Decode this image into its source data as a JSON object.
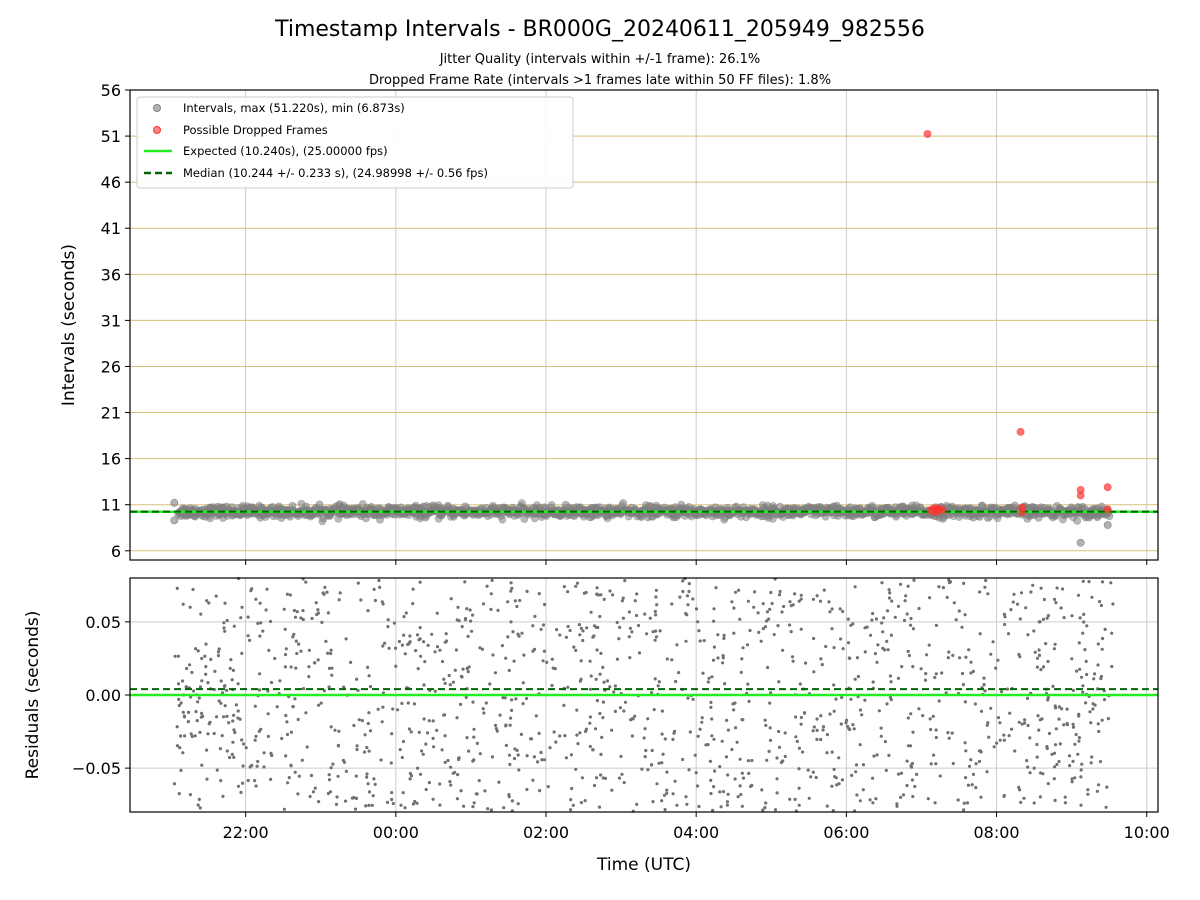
{
  "chart_data": [
    {
      "type": "scatter",
      "title": "Timestamp Intervals - BR000G_20240611_205949_982556",
      "subtitles": [
        "Jitter Quality (intervals within +/-1 frame): 26.1%",
        "Dropped Frame Rate (intervals >1 frames late within 50 FF files): 1.8%"
      ],
      "xlabel": "",
      "ylabel": "Intervals (seconds)",
      "ylim": [
        5,
        56
      ],
      "yticks": [
        6,
        11,
        16,
        21,
        26,
        31,
        36,
        41,
        46,
        51,
        56
      ],
      "ytick_labels": [
        "6",
        "11",
        "16",
        "21",
        "26",
        "31",
        "36",
        "41",
        "46",
        "51",
        "56"
      ],
      "xlim_hours": [
        20.46,
        34.15
      ],
      "xticks_hours": [
        22,
        24,
        26,
        28,
        30,
        32,
        34
      ],
      "grid": true,
      "legend_position": "top-left",
      "legend": [
        "Intervals, max (51.220s), min (6.873s)",
        "Possible Dropped Frames",
        "Expected (10.240s), (25.00000 fps)",
        "Median (10.244 +/- 0.233 s), (24.98998 +/- 0.56 fps)"
      ],
      "expected_interval": 10.24,
      "median_interval": 10.244,
      "intervals_range": {
        "x_start_hours": 21.1,
        "x_end_hours": 33.5,
        "center": 10.24,
        "spread": 0.3
      },
      "interval_outliers": [
        {
          "x": 21.05,
          "y": 11.2
        },
        {
          "x": 21.05,
          "y": 9.3
        },
        {
          "x": 33.12,
          "y": 6.87
        },
        {
          "x": 33.48,
          "y": 8.8
        }
      ],
      "dropped_frames": [
        {
          "x": 31.08,
          "y": 51.22
        },
        {
          "x": 32.32,
          "y": 18.9
        },
        {
          "x": 33.12,
          "y": 12.6
        },
        {
          "x": 33.12,
          "y": 12.0
        },
        {
          "x": 33.48,
          "y": 12.9
        },
        {
          "x": 33.48,
          "y": 10.5
        },
        {
          "x": 32.34,
          "y": 10.7
        },
        {
          "x": 32.34,
          "y": 10.2
        },
        {
          "x": 31.12,
          "y": 10.4
        },
        {
          "x": 31.16,
          "y": 10.6
        },
        {
          "x": 31.2,
          "y": 10.3
        },
        {
          "x": 31.24,
          "y": 10.5
        },
        {
          "x": 31.28,
          "y": 10.4
        },
        {
          "x": 31.18,
          "y": 10.2
        },
        {
          "x": 31.22,
          "y": 10.6
        }
      ],
      "series_colors": {
        "intervals": "#808080",
        "dropped": "#ff3333",
        "expected": "#22ee22",
        "median": "#006400",
        "grid_major_y": "#d8c07a",
        "grid": "#cccccc"
      }
    },
    {
      "type": "scatter",
      "xlabel": "Time (UTC)",
      "ylabel": "Residuals (seconds)",
      "ylim": [
        -0.08,
        0.08
      ],
      "yticks": [
        -0.05,
        0.0,
        0.05
      ],
      "ytick_labels": [
        "−0.05",
        "0.00",
        "0.05"
      ],
      "xlim_hours": [
        20.46,
        34.15
      ],
      "xticks_hours": [
        22,
        24,
        26,
        28,
        30,
        32,
        34
      ],
      "xtick_labels": [
        "22:00",
        "00:00",
        "02:00",
        "04:00",
        "06:00",
        "08:00",
        "10:00"
      ],
      "grid": true,
      "expected_residual": 0.0,
      "median_residual": 0.004,
      "residual_range": {
        "x_start_hours": 21.05,
        "x_end_hours": 33.55,
        "min": -0.08,
        "max": 0.08
      },
      "series_colors": {
        "points": "#707070",
        "expected": "#22ee22",
        "median": "#006400",
        "grid": "#cccccc"
      }
    }
  ]
}
